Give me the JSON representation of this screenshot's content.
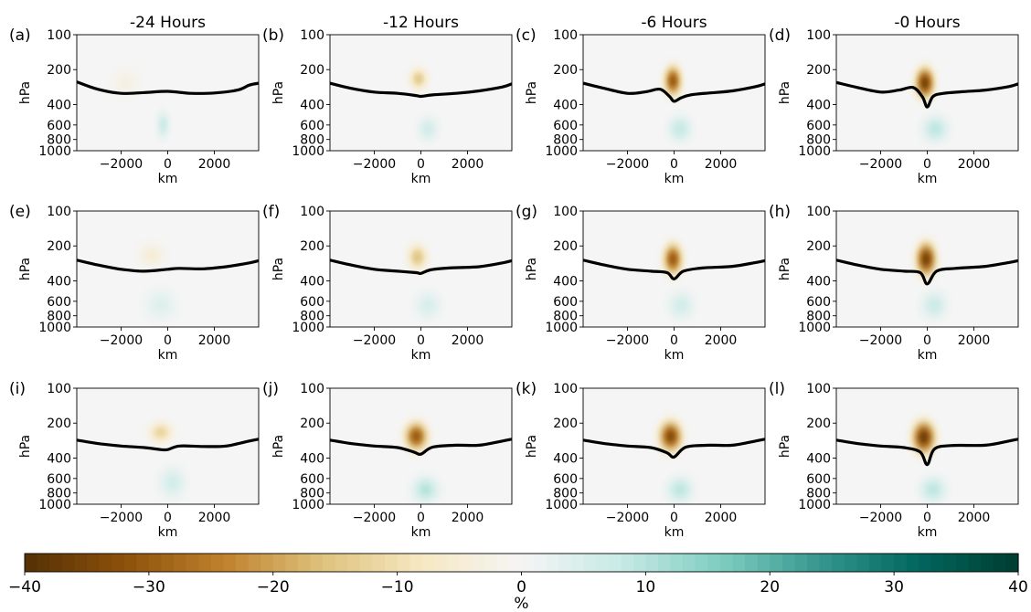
{
  "figure": {
    "colormap": [
      "#543005",
      "#8c510a",
      "#bf812d",
      "#dfc27d",
      "#f6e8c3",
      "#f5f5f5",
      "#c7eae5",
      "#80cdc1",
      "#35978f",
      "#01665e",
      "#003c30"
    ]
  },
  "chart_data": {
    "type": "heatmap",
    "columns": [
      "-24 Hours",
      "-12 Hours",
      "-6 Hours",
      "-0 Hours"
    ],
    "row_count": 3,
    "xlabel": "km",
    "ylabel": "hPa",
    "xlim": [
      -3900,
      3900
    ],
    "xticks": [
      -2000,
      0,
      2000
    ],
    "xtick_labels": [
      "−2000",
      "0",
      "2000"
    ],
    "ylim": [
      1000,
      100
    ],
    "yticks": [
      100,
      200,
      400,
      600,
      800,
      1000
    ],
    "ytick_labels": [
      "100",
      "200",
      "400",
      "600",
      "800",
      "1000"
    ],
    "colorbar": {
      "range": [
        -40,
        40
      ],
      "ticks": [
        -40,
        -30,
        -20,
        -10,
        0,
        10,
        20,
        30,
        40
      ],
      "tick_labels": [
        "−40",
        "−30",
        "−20",
        "−10",
        "0",
        "10",
        "20",
        "30",
        "40"
      ],
      "label": "%"
    },
    "panels": [
      {
        "letter": "(a)",
        "title": "-24 Hours",
        "tropopause": [
          [
            -3900,
            255
          ],
          [
            -3000,
            295
          ],
          [
            -2000,
            320
          ],
          [
            -1000,
            315
          ],
          [
            0,
            308
          ],
          [
            1000,
            320
          ],
          [
            2000,
            318
          ],
          [
            3000,
            300
          ],
          [
            3500,
            272
          ],
          [
            3900,
            262
          ]
        ],
        "anomalies": [
          {
            "x": -200,
            "p": 600,
            "sx": 250,
            "sp": 140,
            "amp": 7
          },
          {
            "x": -1800,
            "p": 260,
            "sx": 500,
            "sp": 60,
            "amp": -3
          }
        ]
      },
      {
        "letter": "(b)",
        "title": "-12 Hours",
        "tropopause": [
          [
            -3900,
            262
          ],
          [
            -3000,
            290
          ],
          [
            -2000,
            312
          ],
          [
            -1000,
            320
          ],
          [
            -200,
            335
          ],
          [
            0,
            340
          ],
          [
            500,
            330
          ],
          [
            1500,
            320
          ],
          [
            2500,
            305
          ],
          [
            3500,
            282
          ],
          [
            3900,
            265
          ]
        ],
        "anomalies": [
          {
            "x": -100,
            "p": 240,
            "sx": 350,
            "sp": 45,
            "amp": -14
          },
          {
            "x": 300,
            "p": 650,
            "sx": 400,
            "sp": 140,
            "amp": 6
          }
        ]
      },
      {
        "letter": "(c)",
        "title": "-6 Hours",
        "tropopause": [
          [
            -3900,
            262
          ],
          [
            -3000,
            290
          ],
          [
            -2000,
            320
          ],
          [
            -1200,
            310
          ],
          [
            -600,
            295
          ],
          [
            -200,
            340
          ],
          [
            0,
            375
          ],
          [
            300,
            350
          ],
          [
            700,
            330
          ],
          [
            1500,
            318
          ],
          [
            2500,
            305
          ],
          [
            3500,
            280
          ],
          [
            3900,
            265
          ]
        ],
        "anomalies": [
          {
            "x": -50,
            "p": 250,
            "sx": 350,
            "sp": 65,
            "amp": -30
          },
          {
            "x": 250,
            "p": 650,
            "sx": 450,
            "sp": 150,
            "amp": 8
          }
        ]
      },
      {
        "letter": "(d)",
        "title": "-0 Hours",
        "tropopause": [
          [
            -3900,
            258
          ],
          [
            -3000,
            285
          ],
          [
            -2000,
            312
          ],
          [
            -1200,
            300
          ],
          [
            -600,
            285
          ],
          [
            -200,
            345
          ],
          [
            0,
            420
          ],
          [
            250,
            340
          ],
          [
            700,
            320
          ],
          [
            1500,
            310
          ],
          [
            2500,
            300
          ],
          [
            3500,
            280
          ],
          [
            3900,
            265
          ]
        ],
        "anomalies": [
          {
            "x": -100,
            "p": 260,
            "sx": 380,
            "sp": 70,
            "amp": -35
          },
          {
            "x": 350,
            "p": 650,
            "sx": 500,
            "sp": 150,
            "amp": 9
          }
        ]
      },
      {
        "letter": "(e)",
        "title": "",
        "tropopause": [
          [
            -3900,
            265
          ],
          [
            -3000,
            292
          ],
          [
            -2000,
            318
          ],
          [
            -1000,
            330
          ],
          [
            0,
            318
          ],
          [
            500,
            312
          ],
          [
            1500,
            315
          ],
          [
            2500,
            302
          ],
          [
            3500,
            280
          ],
          [
            3900,
            268
          ]
        ],
        "anomalies": [
          {
            "x": -700,
            "p": 240,
            "sx": 500,
            "sp": 50,
            "amp": -5
          },
          {
            "x": -300,
            "p": 650,
            "sx": 600,
            "sp": 180,
            "amp": 4
          }
        ]
      },
      {
        "letter": "(f)",
        "title": "",
        "tropopause": [
          [
            -3900,
            265
          ],
          [
            -3000,
            292
          ],
          [
            -2000,
            318
          ],
          [
            -1000,
            330
          ],
          [
            -200,
            340
          ],
          [
            0,
            345
          ],
          [
            400,
            322
          ],
          [
            1200,
            310
          ],
          [
            2500,
            302
          ],
          [
            3500,
            280
          ],
          [
            3900,
            268
          ]
        ],
        "anomalies": [
          {
            "x": -150,
            "p": 250,
            "sx": 380,
            "sp": 55,
            "amp": -15
          },
          {
            "x": 300,
            "p": 650,
            "sx": 500,
            "sp": 160,
            "amp": 5
          }
        ]
      },
      {
        "letter": "(g)",
        "title": "",
        "tropopause": [
          [
            -3900,
            265
          ],
          [
            -3000,
            292
          ],
          [
            -2000,
            318
          ],
          [
            -1000,
            330
          ],
          [
            -300,
            340
          ],
          [
            0,
            385
          ],
          [
            400,
            330
          ],
          [
            1200,
            310
          ],
          [
            2500,
            300
          ],
          [
            3500,
            278
          ],
          [
            3900,
            268
          ]
        ],
        "anomalies": [
          {
            "x": -50,
            "p": 260,
            "sx": 380,
            "sp": 70,
            "amp": -30
          },
          {
            "x": 300,
            "p": 650,
            "sx": 500,
            "sp": 160,
            "amp": 6
          }
        ]
      },
      {
        "letter": "(h)",
        "title": "",
        "tropopause": [
          [
            -3900,
            265
          ],
          [
            -3000,
            292
          ],
          [
            -2000,
            318
          ],
          [
            -1000,
            330
          ],
          [
            -300,
            340
          ],
          [
            0,
            425
          ],
          [
            400,
            330
          ],
          [
            1200,
            312
          ],
          [
            2500,
            300
          ],
          [
            3500,
            278
          ],
          [
            3900,
            268
          ]
        ],
        "anomalies": [
          {
            "x": -50,
            "p": 260,
            "sx": 400,
            "sp": 75,
            "amp": -35
          },
          {
            "x": 300,
            "p": 650,
            "sx": 500,
            "sp": 160,
            "amp": 7
          }
        ]
      },
      {
        "letter": "(i)",
        "title": "",
        "tropopause": [
          [
            -3900,
            280
          ],
          [
            -3000,
            300
          ],
          [
            -2000,
            315
          ],
          [
            -1000,
            325
          ],
          [
            -300,
            338
          ],
          [
            0,
            338
          ],
          [
            500,
            315
          ],
          [
            1500,
            318
          ],
          [
            2500,
            315
          ],
          [
            3500,
            285
          ],
          [
            3900,
            275
          ]
        ],
        "anomalies": [
          {
            "x": -300,
            "p": 240,
            "sx": 450,
            "sp": 45,
            "amp": -12
          },
          {
            "x": 200,
            "p": 650,
            "sx": 500,
            "sp": 170,
            "amp": 6
          }
        ]
      },
      {
        "letter": "(j)",
        "title": "",
        "tropopause": [
          [
            -3900,
            280
          ],
          [
            -3000,
            300
          ],
          [
            -2000,
            315
          ],
          [
            -1000,
            325
          ],
          [
            -300,
            355
          ],
          [
            0,
            370
          ],
          [
            500,
            322
          ],
          [
            1500,
            310
          ],
          [
            2500,
            310
          ],
          [
            3500,
            285
          ],
          [
            3900,
            275
          ]
        ],
        "anomalies": [
          {
            "x": -200,
            "p": 260,
            "sx": 450,
            "sp": 65,
            "amp": -30
          },
          {
            "x": 200,
            "p": 750,
            "sx": 500,
            "sp": 170,
            "amp": 10
          }
        ]
      },
      {
        "letter": "(k)",
        "title": "",
        "tropopause": [
          [
            -3900,
            280
          ],
          [
            -3000,
            300
          ],
          [
            -2000,
            315
          ],
          [
            -1000,
            325
          ],
          [
            -300,
            360
          ],
          [
            0,
            392
          ],
          [
            500,
            322
          ],
          [
            1500,
            310
          ],
          [
            2500,
            310
          ],
          [
            3500,
            285
          ],
          [
            3900,
            275
          ]
        ],
        "anomalies": [
          {
            "x": -150,
            "p": 260,
            "sx": 450,
            "sp": 70,
            "amp": -33
          },
          {
            "x": 250,
            "p": 750,
            "sx": 500,
            "sp": 170,
            "amp": 9
          }
        ]
      },
      {
        "letter": "(l)",
        "title": "",
        "tropopause": [
          [
            -3900,
            280
          ],
          [
            -3000,
            300
          ],
          [
            -2000,
            315
          ],
          [
            -1000,
            325
          ],
          [
            -300,
            355
          ],
          [
            0,
            455
          ],
          [
            300,
            335
          ],
          [
            1000,
            312
          ],
          [
            2500,
            310
          ],
          [
            3500,
            285
          ],
          [
            3900,
            275
          ]
        ],
        "anomalies": [
          {
            "x": -150,
            "p": 265,
            "sx": 450,
            "sp": 75,
            "amp": -36
          },
          {
            "x": 250,
            "p": 750,
            "sx": 500,
            "sp": 170,
            "amp": 9
          }
        ]
      }
    ]
  }
}
